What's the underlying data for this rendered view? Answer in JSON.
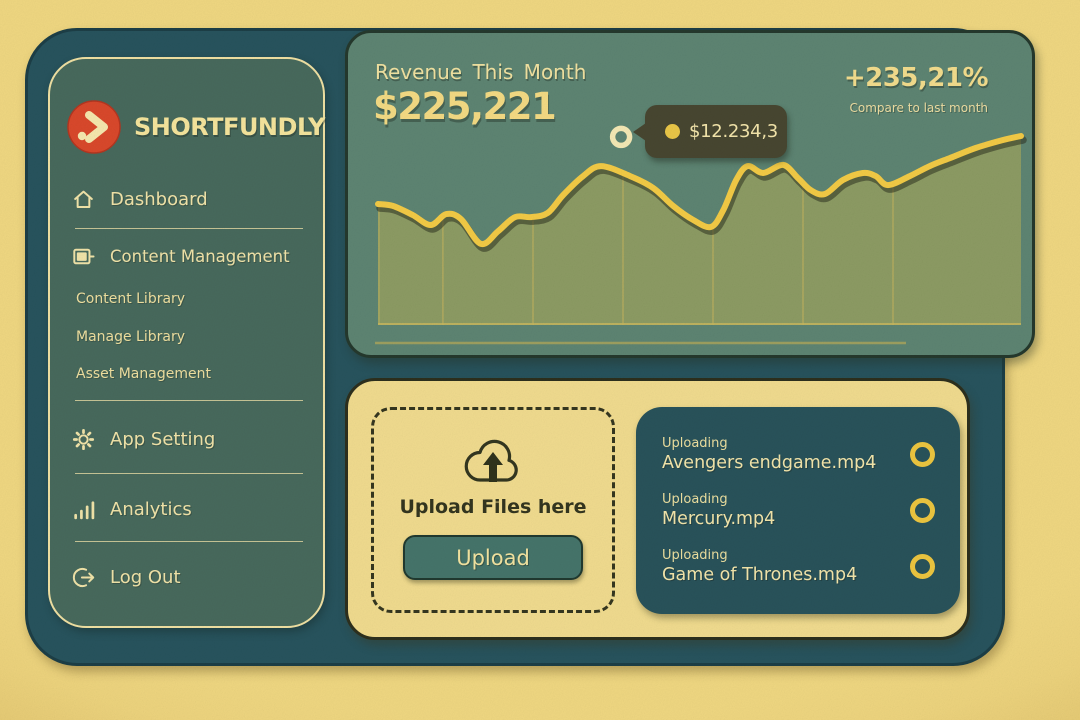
{
  "app": {
    "brand": "SHORTFUNDLY"
  },
  "colors": {
    "page_bg": "#eed77d",
    "panel": "#27535d",
    "sidebar_bg": "#47695c",
    "card_bg": "#5d8472",
    "cream_text": "#f0e3a8",
    "accent_yellow": "#f2ca45",
    "brand_red": "#d9482b",
    "area_fill": "#8f9c63",
    "tooltip_bg": "#474630",
    "upload_card_bg": "#f0db8e",
    "button_bg": "#45746a"
  },
  "sidebar": {
    "logo": "SHORTFUNDLY",
    "dashboard": "Dashboard",
    "content_management": "Content Management",
    "content_library": "Content Library",
    "manage_library": "Manage Library",
    "asset_management": "Asset Management",
    "app_setting": "App Setting",
    "analytics": "Analytics",
    "log_out": "Log Out"
  },
  "revenue_card": {
    "title": "Revenue This Month",
    "amount": "$225,221",
    "change": "+235,21%",
    "change_caption": "Compare to last month",
    "tooltip_value": "$12.234,3"
  },
  "upload_section": {
    "dropzone_label": "Upload Files here",
    "button_label": "Upload",
    "uploads": [
      {
        "status": "Uploading",
        "filename": "Avengers endgame.mp4"
      },
      {
        "status": "Uploading",
        "filename": "Mercury.mp4"
      },
      {
        "status": "Uploading",
        "filename": "Game of Thrones.mp4"
      }
    ]
  },
  "chart_data": {
    "type": "area",
    "title": "Revenue This Month",
    "legend": "none",
    "axis_labels_visible": false,
    "grid": "vertical-only",
    "colors": {
      "line": "#f2ca45",
      "line_shadow": "rgba(45,50,32,0.55)",
      "fill": "#8f9c63",
      "grid": "#c8b55e",
      "baseline": "#c9b85e"
    },
    "series": [
      {
        "name": "revenue",
        "points": [
          [
            0,
            64.0
          ],
          [
            2.3,
            63.0
          ],
          [
            5.4,
            58.2
          ],
          [
            8.2,
            52.9
          ],
          [
            10.6,
            58.7
          ],
          [
            12.9,
            56.1
          ],
          [
            16.0,
            42.9
          ],
          [
            18.7,
            49.7
          ],
          [
            21.3,
            57.1
          ],
          [
            23.8,
            57.1
          ],
          [
            26.4,
            59.3
          ],
          [
            28.8,
            68.8
          ],
          [
            31.9,
            78.8
          ],
          [
            34.7,
            84.1
          ],
          [
            39.2,
            78.8
          ],
          [
            42.8,
            72.5
          ],
          [
            45.9,
            63.0
          ],
          [
            49.0,
            55.6
          ],
          [
            51.8,
            51.9
          ],
          [
            53.7,
            60.8
          ],
          [
            55.7,
            76.7
          ],
          [
            57.5,
            84.1
          ],
          [
            59.9,
            80.4
          ],
          [
            63.0,
            84.7
          ],
          [
            65.3,
            77.8
          ],
          [
            67.3,
            71.4
          ],
          [
            69.5,
            69.3
          ],
          [
            72.3,
            76.7
          ],
          [
            75.4,
            80.4
          ],
          [
            77.4,
            78.8
          ],
          [
            79.3,
            74.0
          ],
          [
            82.7,
            78.8
          ],
          [
            85.8,
            84.1
          ],
          [
            89.0,
            88.4
          ],
          [
            93.0,
            93.7
          ],
          [
            97.2,
            97.9
          ],
          [
            100,
            100
          ]
        ]
      }
    ],
    "highlight_marker": {
      "x_pct": 37.8,
      "value": 99.5,
      "label": "$12.234,3"
    },
    "gridlines_x_pct": [
      10.1,
      24.1,
      38.1,
      52.1,
      66.1,
      80.1
    ],
    "value_range_note": "no numeric axes shown; values normalized 0-100"
  }
}
